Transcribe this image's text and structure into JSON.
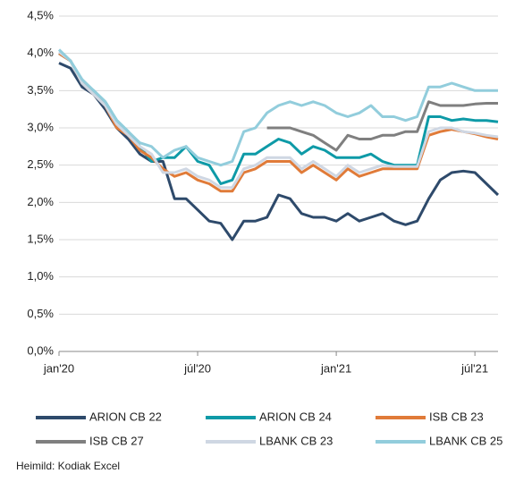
{
  "chart_data": {
    "type": "line",
    "categories": [
      "jan'20",
      null,
      null,
      null,
      null,
      null,
      null,
      null,
      null,
      null,
      null,
      null,
      "júl'20",
      null,
      null,
      null,
      null,
      null,
      null,
      null,
      null,
      null,
      null,
      null,
      "jan'21",
      null,
      null,
      null,
      null,
      null,
      null,
      null,
      null,
      null,
      null,
      null,
      "júl'21",
      null,
      null
    ],
    "ylim": [
      0,
      4.5
    ],
    "yticks": [
      {
        "value": 0,
        "label": "0,0%"
      },
      {
        "value": 0.5,
        "label": "0,5%"
      },
      {
        "value": 1,
        "label": "1,0%"
      },
      {
        "value": 1.5,
        "label": "1,5%"
      },
      {
        "value": 2,
        "label": "2,0%"
      },
      {
        "value": 2.5,
        "label": "2,5%"
      },
      {
        "value": 3,
        "label": "3,0%"
      },
      {
        "value": 3.5,
        "label": "3,5%"
      },
      {
        "value": 4,
        "label": "4,0%"
      },
      {
        "value": 4.5,
        "label": "4,5%"
      }
    ],
    "grid": true,
    "series": [
      {
        "name": "ARION CB 22",
        "color": "#2e4a6b",
        "values": [
          3.87,
          3.8,
          3.55,
          3.45,
          3.25,
          3.0,
          2.85,
          2.65,
          2.55,
          2.55,
          2.05,
          2.05,
          1.9,
          1.75,
          1.72,
          1.5,
          1.75,
          1.75,
          1.8,
          2.1,
          2.05,
          1.85,
          1.8,
          1.8,
          1.75,
          1.85,
          1.75,
          1.8,
          1.85,
          1.75,
          1.7,
          1.75,
          2.05,
          2.3,
          2.4,
          2.42,
          2.4,
          2.25,
          2.1
        ]
      },
      {
        "name": "ARION CB 24",
        "color": "#0e9aa7",
        "values": [
          4.0,
          3.9,
          3.6,
          3.5,
          3.35,
          3.1,
          2.95,
          2.75,
          2.55,
          2.6,
          2.6,
          2.75,
          2.55,
          2.5,
          2.25,
          2.3,
          2.65,
          2.65,
          2.75,
          2.85,
          2.8,
          2.65,
          2.75,
          2.7,
          2.6,
          2.6,
          2.6,
          2.65,
          2.55,
          2.5,
          2.5,
          2.5,
          3.15,
          3.15,
          3.1,
          3.12,
          3.1,
          3.1,
          3.08
        ]
      },
      {
        "name": "ISB CB 23",
        "color": "#e07b39",
        "values": [
          4.0,
          3.9,
          3.6,
          3.45,
          3.3,
          3.0,
          2.9,
          2.7,
          2.6,
          2.45,
          2.35,
          2.4,
          2.3,
          2.25,
          2.15,
          2.15,
          2.4,
          2.45,
          2.55,
          2.55,
          2.55,
          2.4,
          2.5,
          2.4,
          2.3,
          2.45,
          2.35,
          2.4,
          2.45,
          2.45,
          2.45,
          2.45,
          2.9,
          2.95,
          2.98,
          2.95,
          2.92,
          2.88,
          2.85
        ]
      },
      {
        "name": "ISB CB 27",
        "color": "#7f7f7f",
        "values": [
          null,
          null,
          null,
          null,
          null,
          null,
          null,
          null,
          null,
          null,
          null,
          null,
          null,
          null,
          null,
          null,
          null,
          null,
          3.0,
          3.0,
          3.0,
          2.95,
          2.9,
          2.8,
          2.7,
          2.9,
          2.85,
          2.85,
          2.9,
          2.9,
          2.95,
          2.95,
          3.35,
          3.3,
          3.3,
          3.3,
          3.32,
          3.33,
          3.33
        ]
      },
      {
        "name": "LBANK CB 23",
        "color": "#cfd7e3",
        "values": [
          4.02,
          3.9,
          3.6,
          3.45,
          3.3,
          3.05,
          2.9,
          2.75,
          2.65,
          2.4,
          2.4,
          2.45,
          2.35,
          2.3,
          2.2,
          2.2,
          2.45,
          2.5,
          2.6,
          2.6,
          2.6,
          2.45,
          2.55,
          2.45,
          2.35,
          2.5,
          2.4,
          2.45,
          2.5,
          2.48,
          2.48,
          2.48,
          2.95,
          3.0,
          3.0,
          2.95,
          2.93,
          2.9,
          2.88
        ]
      },
      {
        "name": "LBANK CB 25",
        "color": "#92cddc",
        "values": [
          4.05,
          3.9,
          3.65,
          3.5,
          3.35,
          3.1,
          2.95,
          2.8,
          2.75,
          2.6,
          2.7,
          2.75,
          2.6,
          2.55,
          2.5,
          2.55,
          2.95,
          3.0,
          3.2,
          3.3,
          3.35,
          3.3,
          3.35,
          3.3,
          3.2,
          3.15,
          3.2,
          3.3,
          3.15,
          3.15,
          3.1,
          3.15,
          3.55,
          3.55,
          3.6,
          3.55,
          3.5,
          3.5,
          3.5
        ]
      }
    ],
    "source": "Heimild:  Kodiak Excel"
  }
}
